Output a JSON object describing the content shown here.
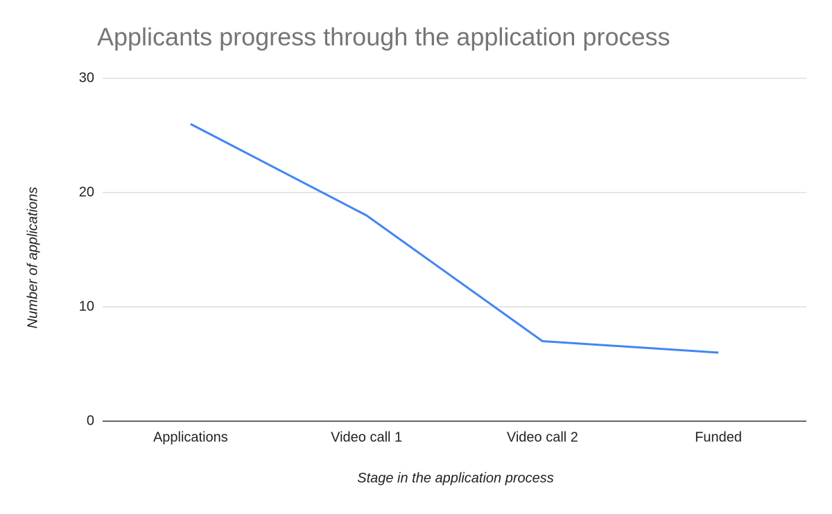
{
  "chart_data": {
    "type": "line",
    "title": "Applicants progress through the application process",
    "x_label": "Stage in the application process",
    "y_label": "Number of applications",
    "categories": [
      "Applications",
      "Video call 1",
      "Video call 2",
      "Funded"
    ],
    "values": [
      26,
      18,
      7,
      6
    ],
    "color": "#4285f4",
    "ylim": [
      0,
      30
    ],
    "yticks": [
      0,
      10,
      20,
      30
    ],
    "grid": true
  }
}
